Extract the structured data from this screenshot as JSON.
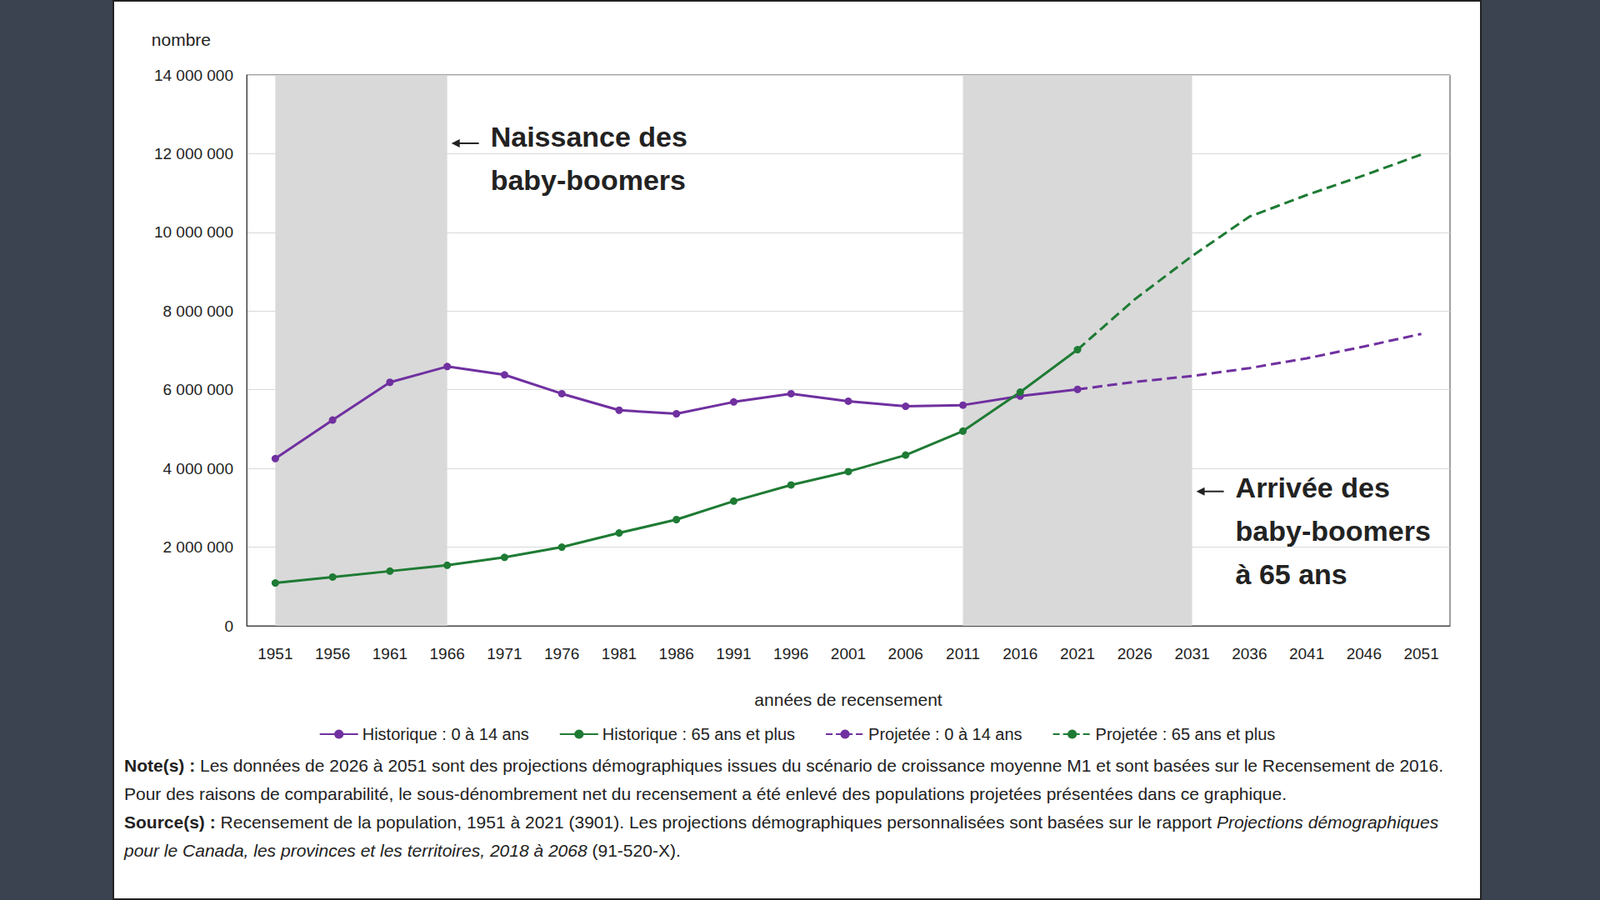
{
  "chart_data": {
    "type": "line",
    "categories": [
      "1951",
      "1956",
      "1961",
      "1966",
      "1971",
      "1976",
      "1981",
      "1986",
      "1991",
      "1996",
      "2001",
      "2006",
      "2011",
      "2016",
      "2021",
      "2026",
      "2031",
      "2036",
      "2041",
      "2046",
      "2051"
    ],
    "series": [
      {
        "name": "Historique : 0 à 14 ans",
        "color": "#7030a0",
        "marker": "circle",
        "line_style": "solid",
        "values": [
          4250000,
          5230000,
          6190000,
          6590000,
          6380000,
          5900000,
          5480000,
          5390000,
          5690000,
          5900000,
          5710000,
          5580000,
          5610000,
          5840000,
          6010000,
          null,
          null,
          null,
          null,
          null,
          null
        ]
      },
      {
        "name": "Historique : 65 ans et plus",
        "color": "#1e7b34",
        "marker": "circle",
        "line_style": "solid",
        "values": [
          1090000,
          1240000,
          1390000,
          1540000,
          1740000,
          2000000,
          2360000,
          2700000,
          3170000,
          3580000,
          3920000,
          4340000,
          4950000,
          5940000,
          7020000,
          null,
          null,
          null,
          null,
          null,
          null
        ]
      },
      {
        "name": "Projetée : 0 à 14 ans",
        "color": "#7030a0",
        "marker": "none",
        "line_style": "dashed",
        "values": [
          null,
          null,
          null,
          null,
          null,
          null,
          null,
          null,
          null,
          null,
          null,
          null,
          null,
          null,
          6010000,
          6200000,
          6350000,
          6550000,
          6800000,
          7100000,
          7420000
        ]
      },
      {
        "name": "Projetée : 65 ans et plus",
        "color": "#1e7b34",
        "marker": "none",
        "line_style": "dashed",
        "values": [
          null,
          null,
          null,
          null,
          null,
          null,
          null,
          null,
          null,
          null,
          null,
          null,
          null,
          null,
          7020000,
          8300000,
          9400000,
          10400000,
          10950000,
          11450000,
          11980000
        ]
      }
    ],
    "x_label": "années de recensement",
    "y_label": "nombre",
    "ylim": [
      0,
      14000000
    ],
    "yticks": [
      0,
      {
        "value": 2000000,
        "label": "2 000 000"
      },
      {
        "value": 4000000,
        "label": "4 000 000"
      },
      {
        "value": 6000000,
        "label": "6 000 000"
      },
      {
        "value": 8000000,
        "label": "8 000 000"
      },
      {
        "value": 10000000,
        "label": "10 000 000"
      },
      {
        "value": 12000000,
        "label": "12 000 000"
      },
      {
        "value": 14000000,
        "label": "14 000 000"
      }
    ],
    "grid": true,
    "legend": "bottom",
    "annotations": [
      {
        "text": "Naissance des\nbaby-boomers",
        "from": "1951",
        "to": "1966"
      },
      {
        "text": "Arrivée des\nbaby-boomers\nà 65 ans",
        "from": "2011",
        "to": "2031"
      }
    ],
    "notes": {
      "label": "Note(s) :",
      "text": "Les données de 2026 à 2051 sont des projections démographiques issues du scénario de croissance moyenne M1 et sont basées sur le Recensement de 2016. Pour des raisons de comparabilité, le sous-dénombrement net du recensement a été enlevé des populations projetées présentées dans ce graphique."
    },
    "source": {
      "label": "Source(s) :",
      "text": "Recensement de la population, 1951 à 2021 (3901). Les projections démographiques personnalisées sont basées sur le rapport",
      "title": "Projections démographiques pour le Canada, les provinces et les territoires, 2018 à 2068",
      "after": "(91-520-X)."
    }
  }
}
